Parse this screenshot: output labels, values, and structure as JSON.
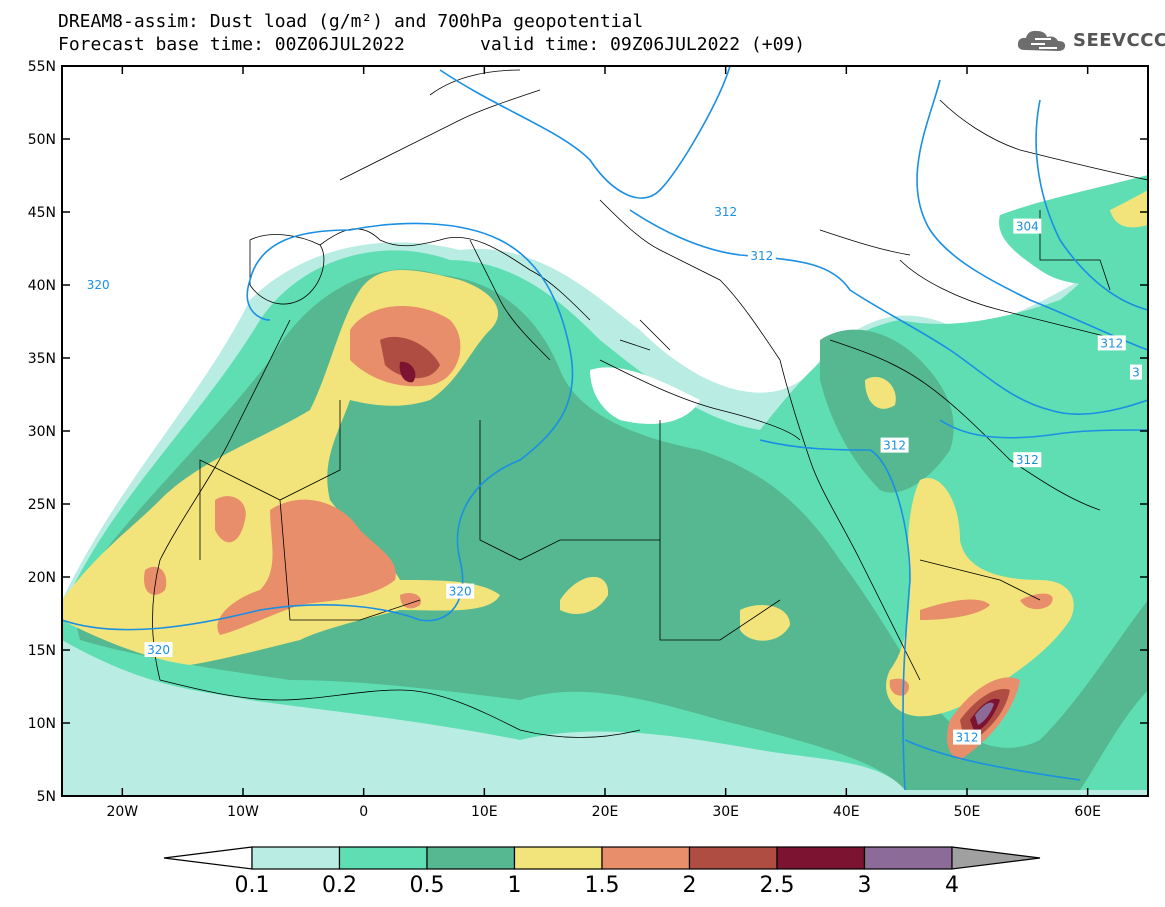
{
  "header": {
    "line1": "DREAM8-assim: Dust load (g/m²) and 700hPa geopotential",
    "line2_left": "Forecast base time: 00Z06JUL2022",
    "line2_right": "valid time: 09Z06JUL2022 (+09)",
    "logo_text": "SEEVCCC",
    "logo_icon": "cloud-icon"
  },
  "map": {
    "lon_range": [
      -25,
      65
    ],
    "lat_range": [
      5,
      55
    ],
    "lat_ticks": [
      {
        "value": 55,
        "label": "55N"
      },
      {
        "value": 50,
        "label": "50N"
      },
      {
        "value": 45,
        "label": "45N"
      },
      {
        "value": 40,
        "label": "40N"
      },
      {
        "value": 35,
        "label": "35N"
      },
      {
        "value": 30,
        "label": "30N"
      },
      {
        "value": 25,
        "label": "25N"
      },
      {
        "value": 20,
        "label": "20N"
      },
      {
        "value": 15,
        "label": "15N"
      },
      {
        "value": 10,
        "label": "10N"
      },
      {
        "value": 5,
        "label": "5N"
      }
    ],
    "lon_ticks": [
      {
        "value": -20,
        "label": "20W"
      },
      {
        "value": -10,
        "label": "10W"
      },
      {
        "value": 0,
        "label": "0"
      },
      {
        "value": 10,
        "label": "10E"
      },
      {
        "value": 20,
        "label": "20E"
      },
      {
        "value": 30,
        "label": "30E"
      },
      {
        "value": 40,
        "label": "40E"
      },
      {
        "value": 50,
        "label": "50E"
      },
      {
        "value": 60,
        "label": "60E"
      }
    ],
    "contour_labels": [
      {
        "text": "320",
        "lon": -22,
        "lat": 40
      },
      {
        "text": "312",
        "lon": 30,
        "lat": 45
      },
      {
        "text": "312",
        "lon": 33,
        "lat": 42
      },
      {
        "text": "304",
        "lon": 55,
        "lat": 44
      },
      {
        "text": "312",
        "lon": 62,
        "lat": 36
      },
      {
        "text": "312",
        "lon": 44,
        "lat": 29
      },
      {
        "text": "312",
        "lon": 55,
        "lat": 28
      },
      {
        "text": "320",
        "lon": 8,
        "lat": 19
      },
      {
        "text": "320",
        "lon": -17,
        "lat": 15
      },
      {
        "text": "312",
        "lon": 50,
        "lat": 9
      },
      {
        "text": "3",
        "lon": 64,
        "lat": 34
      }
    ]
  },
  "legend": {
    "labels": [
      "0.1",
      "0.2",
      "0.5",
      "1",
      "1.5",
      "2",
      "2.5",
      "3",
      "4"
    ],
    "colors": [
      "#ffffff",
      "#b9ede3",
      "#5fdeb4",
      "#55b890",
      "#f2e47a",
      "#e88e6a",
      "#b04d43",
      "#7b1331",
      "#8c6b99",
      "#a0a0a0"
    ],
    "unit": "g/m²"
  },
  "colors": {
    "contour": "#1a8fe3",
    "border": "#000000"
  }
}
